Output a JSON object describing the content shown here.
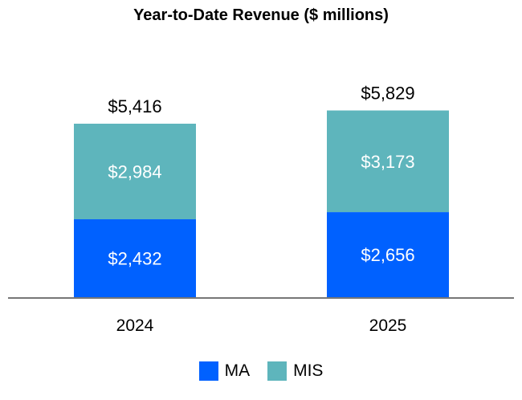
{
  "chart_data": {
    "type": "bar",
    "stacked": true,
    "title": "Year-to-Date Revenue ($ millions)",
    "categories": [
      "2024",
      "2025"
    ],
    "series": [
      {
        "name": "MA",
        "values": [
          2432,
          2656
        ],
        "labels": [
          "$2,432",
          "$2,656"
        ],
        "color": "#0061FF"
      },
      {
        "name": "MIS",
        "values": [
          2984,
          3173
        ],
        "labels": [
          "$2,984",
          "$3,173"
        ],
        "color": "#5EB5BC"
      }
    ],
    "totals": [
      5416,
      5829
    ],
    "total_labels": [
      "$5,416",
      "$5,829"
    ],
    "grid": false,
    "legend": "bottom"
  }
}
